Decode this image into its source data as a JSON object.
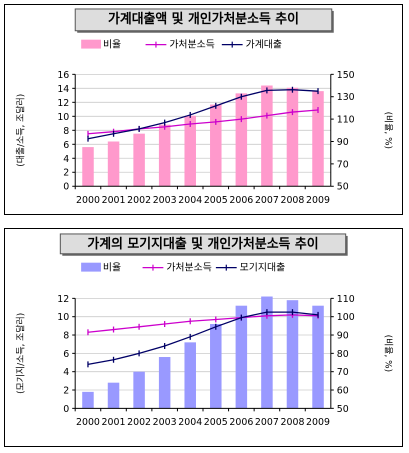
{
  "chart_data": [
    {
      "type": "bar",
      "title": "가계대출액 및 개인가처분소득 추이",
      "categories": [
        "2000",
        "2001",
        "2002",
        "2003",
        "2004",
        "2005",
        "2006",
        "2007",
        "2008",
        "2009"
      ],
      "ylabel": "(대출/소득, 조달러)",
      "y2label": "(비율, %)",
      "ylim": [
        0,
        16
      ],
      "y2lim": [
        50,
        150
      ],
      "yticks": [
        "0",
        "2",
        "4",
        "6",
        "8",
        "10",
        "12",
        "14",
        "16"
      ],
      "y2ticks": [
        "50",
        "70",
        "90",
        "110",
        "130",
        "150"
      ],
      "legend_position": "top",
      "series": [
        {
          "name": "비율",
          "kind": "bar",
          "axis": "right",
          "color": "#ff99cc",
          "values": [
            85,
            90,
            97,
            105,
            113,
            123,
            133,
            140,
            138,
            135
          ]
        },
        {
          "name": "가처분소득",
          "kind": "line",
          "axis": "left",
          "color": "#cc00cc",
          "marker": "tick",
          "values": [
            7.5,
            7.8,
            8.2,
            8.5,
            8.9,
            9.2,
            9.6,
            10.1,
            10.6,
            10.9
          ]
        },
        {
          "name": "가계대출",
          "kind": "line",
          "axis": "left",
          "color": "#000066",
          "marker": "tick",
          "values": [
            6.8,
            7.5,
            8.2,
            9.1,
            10.2,
            11.5,
            12.8,
            13.7,
            13.8,
            13.6
          ]
        }
      ]
    },
    {
      "type": "bar",
      "title": "가계의 모기지대출 및 개인가처분소득 추이",
      "categories": [
        "2000",
        "2001",
        "2002",
        "2003",
        "2004",
        "2005",
        "2006",
        "2007",
        "2008",
        "2009"
      ],
      "ylabel": "(모기지/소득, 조달러)",
      "y2label": "(비율, %)",
      "ylim": [
        0,
        12
      ],
      "y2lim": [
        50,
        110
      ],
      "yticks": [
        "0",
        "2",
        "4",
        "6",
        "8",
        "10",
        "12"
      ],
      "y2ticks": [
        "50",
        "60",
        "70",
        "80",
        "90",
        "100",
        "110"
      ],
      "legend_position": "top",
      "series": [
        {
          "name": "비율",
          "kind": "bar",
          "axis": "right",
          "color": "#9999ff",
          "values": [
            59,
            64,
            70,
            78,
            86,
            96,
            106,
            111,
            109,
            106
          ]
        },
        {
          "name": "가처분소득",
          "kind": "line",
          "axis": "left",
          "color": "#cc00cc",
          "marker": "tick",
          "values": [
            8.3,
            8.6,
            8.9,
            9.2,
            9.5,
            9.7,
            9.9,
            10.1,
            10.2,
            10.1
          ]
        },
        {
          "name": "모기지대출",
          "kind": "line",
          "axis": "left",
          "color": "#000066",
          "marker": "tick",
          "values": [
            4.8,
            5.3,
            6.0,
            6.8,
            7.8,
            8.9,
            9.9,
            10.5,
            10.5,
            10.2
          ]
        }
      ]
    }
  ]
}
